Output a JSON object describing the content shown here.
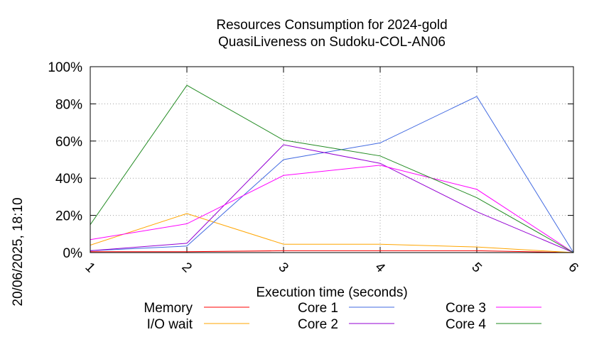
{
  "side_label": "20/06/2025, 18:10",
  "chart_data": {
    "type": "line",
    "title": [
      "Resources Consumption for 2024-gold",
      "QuasiLiveness on Sudoku-COL-AN06"
    ],
    "xlabel": "Execution time (seconds)",
    "ylabel": "",
    "x": [
      1,
      2,
      3,
      4,
      5,
      6
    ],
    "xlim": [
      1,
      6
    ],
    "ylim": [
      0,
      100
    ],
    "x_tick_labels": [
      "1",
      "2",
      "3",
      "4",
      "5",
      "6"
    ],
    "y_tick_labels": [
      "0%",
      "20%",
      "40%",
      "60%",
      "80%",
      "100%"
    ],
    "y_ticks": [
      0,
      20,
      40,
      60,
      80,
      100
    ],
    "grid": true,
    "legend_position": "bottom",
    "series": [
      {
        "name": "Memory",
        "color": "#ff0000",
        "values": [
          0.5,
          0.5,
          1,
          1,
          1,
          0
        ]
      },
      {
        "name": "I/O wait",
        "color": "#ffa500",
        "values": [
          4,
          21,
          4.5,
          4.5,
          3,
          0
        ]
      },
      {
        "name": "Core 1",
        "color": "#4169e1",
        "values": [
          1,
          3.5,
          50,
          59,
          84,
          0
        ]
      },
      {
        "name": "Core 2",
        "color": "#9400d3",
        "values": [
          1,
          5,
          58,
          48,
          22,
          0
        ]
      },
      {
        "name": "Core 3",
        "color": "#ff00ff",
        "values": [
          7,
          15.5,
          41.5,
          47,
          34,
          0
        ]
      },
      {
        "name": "Core 4",
        "color": "#228b22",
        "values": [
          15,
          90,
          60.5,
          52,
          29.5,
          0
        ]
      }
    ]
  }
}
